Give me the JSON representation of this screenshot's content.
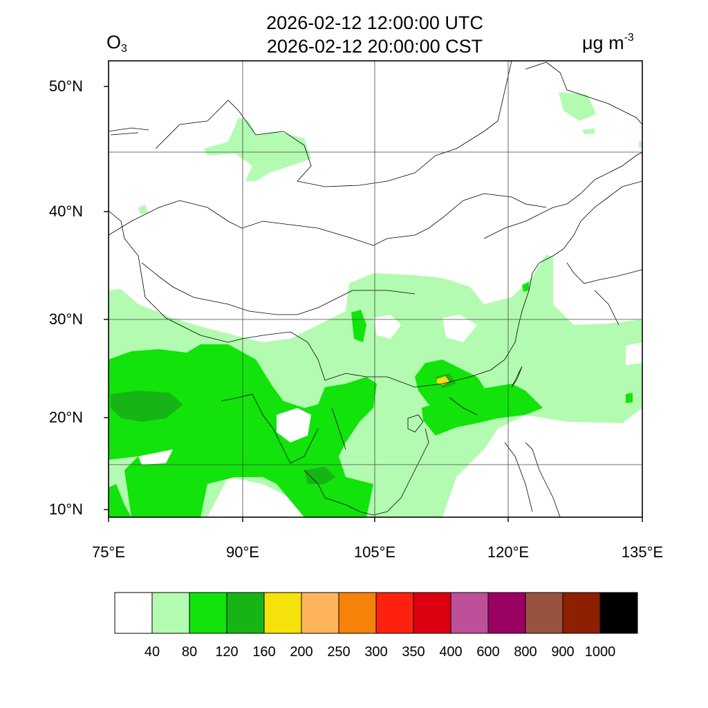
{
  "header": {
    "title_utc": "2026-02-12 12:00:00 UTC",
    "title_cst": "2026-02-12 20:00:00 CST",
    "variable_base": "O",
    "variable_sub": "3",
    "unit_base": "μg m",
    "unit_sup": "-3"
  },
  "map": {
    "lat_ticks": [
      "50°N",
      "40°N",
      "30°N",
      "20°N",
      "10°N"
    ],
    "lon_ticks": [
      "75°E",
      "90°E",
      "105°E",
      "120°E",
      "135°E"
    ],
    "lon_range": [
      75,
      135
    ],
    "lat_range": [
      10,
      52
    ]
  },
  "colorbar": {
    "colors": [
      "#ffffff",
      "#b3fbb0",
      "#11e30b",
      "#16b515",
      "#f5e10b",
      "#ffb45c",
      "#f6820a",
      "#fe2110",
      "#dd0011",
      "#bd5099",
      "#9b0063",
      "#9a5240",
      "#8c2000",
      "#000000"
    ],
    "labels": [
      "40",
      "80",
      "120",
      "160",
      "200",
      "250",
      "300",
      "350",
      "400",
      "600",
      "800",
      "900",
      "1000"
    ]
  },
  "fill_colors": {
    "c40_80": "#b3fbb0",
    "c80_120": "#11e30b",
    "c120_160": "#16b515",
    "c160_200": "#f5e10b"
  }
}
